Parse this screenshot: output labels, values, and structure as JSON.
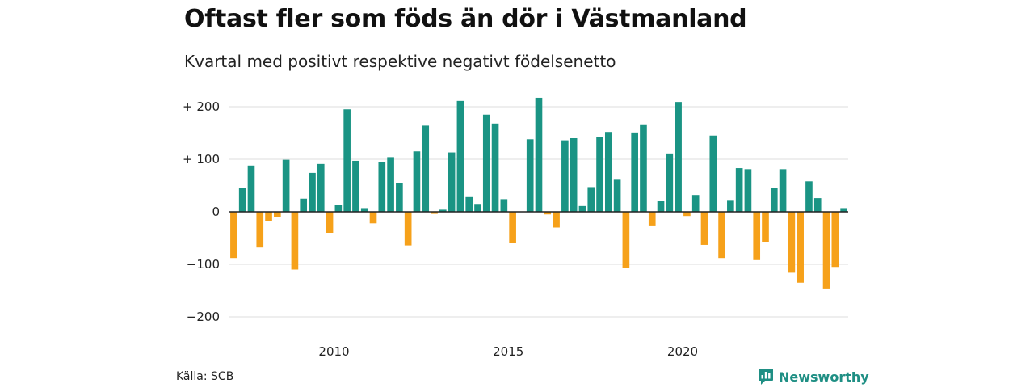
{
  "title": "Oftast fler som föds än dör i Västmanland",
  "subtitle": "Kvartal med positivt respektive negativt födelsenetto",
  "source": "Källa: SCB",
  "brand": {
    "name": "Newsworthy",
    "icon": "newsworthy-logo-icon"
  },
  "colors": {
    "positive": "#1a9484",
    "negative": "#f6a11a",
    "grid": "#dddddd",
    "zero": "#222222"
  },
  "chart_data": {
    "type": "bar",
    "title": "Oftast fler som föds än dör i Västmanland",
    "subtitle": "Kvartal med positivt respektive negativt födelsenetto",
    "xlabel": "",
    "ylabel": "",
    "x_start": "2007 Q1",
    "x_ticks": [
      {
        "label": "2010",
        "quarter_index": 12
      },
      {
        "label": "2015",
        "quarter_index": 32
      },
      {
        "label": "2020",
        "quarter_index": 52
      }
    ],
    "y_ticks": [
      {
        "value": 200,
        "label": "+ 200"
      },
      {
        "value": 100,
        "label": "+ 100"
      },
      {
        "value": 0,
        "label": "0"
      },
      {
        "value": -100,
        "label": "−100"
      },
      {
        "value": -200,
        "label": "−200"
      }
    ],
    "ylim": [
      -230,
      230
    ],
    "grid": true,
    "legend": "none",
    "values": [
      -88,
      45,
      88,
      -68,
      -18,
      -10,
      99,
      -110,
      25,
      74,
      91,
      -40,
      13,
      195,
      97,
      7,
      -22,
      95,
      104,
      55,
      -64,
      115,
      164,
      -4,
      4,
      113,
      211,
      28,
      15,
      185,
      168,
      24,
      -60,
      0,
      138,
      217,
      -5,
      -30,
      136,
      140,
      11,
      47,
      143,
      152,
      61,
      -107,
      151,
      165,
      -26,
      20,
      111,
      209,
      -8,
      32,
      -63,
      145,
      -88,
      21,
      83,
      81,
      -92,
      -58,
      45,
      81,
      -116,
      -135,
      58,
      26,
      -146,
      -105,
      7
    ]
  }
}
